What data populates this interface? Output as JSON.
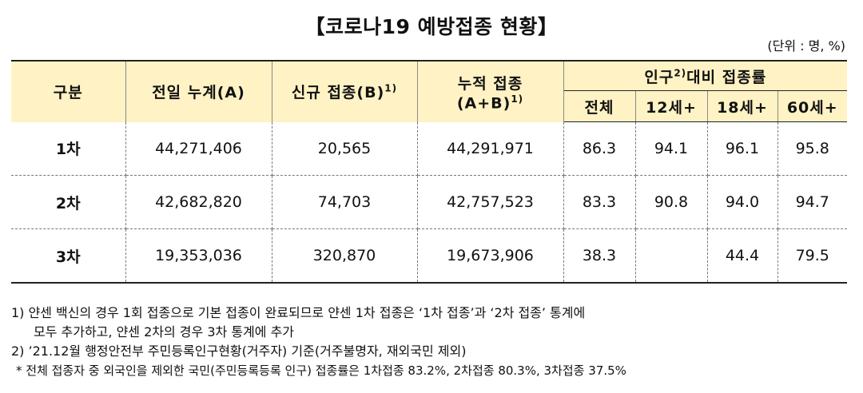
{
  "title": "【코로나19 예방접종 현황】",
  "unit": "(단위 : 명, %)",
  "table": {
    "headers": {
      "category": "구분",
      "prev_total": "전일 누계(A)",
      "new": "신규 접종(B)",
      "new_sup": "1)",
      "cumulative_line1": "누적 접종",
      "cumulative_line2": "(A+B)",
      "cumulative_sup": "1)",
      "ratio_group": "인구",
      "ratio_sup": "2)",
      "ratio_group_tail": "대비 접종률",
      "ratio_cols": [
        "전체",
        "12세+",
        "18세+",
        "60세+"
      ]
    },
    "rows": [
      {
        "label": "1차",
        "prev_total": "44,271,406",
        "new": "20,565",
        "cumulative": "44,291,971",
        "all": "86.3",
        "age12": "94.1",
        "age18": "96.1",
        "age60": "95.8"
      },
      {
        "label": "2차",
        "prev_total": "42,682,820",
        "new": "74,703",
        "cumulative": "42,757,523",
        "all": "83.3",
        "age12": "90.8",
        "age18": "94.0",
        "age60": "94.7"
      },
      {
        "label": "3차",
        "prev_total": "19,353,036",
        "new": "320,870",
        "cumulative": "19,673,906",
        "all": "38.3",
        "age12": "",
        "age18": "44.4",
        "age60": "79.5"
      }
    ]
  },
  "notes": {
    "n1_line1": "1) 얀센 백신의 경우 1회 접종으로 기본 접종이 완료되므로 얀센 1차 접종은 ‘1차 접종’과 ‘2차 접종’ 통계에",
    "n1_line2": "모두 추가하고, 얀센 2차의 경우 3차 통계에 추가",
    "n2": "2) ’21.12월 행정안전부 주민등록인구현황(거주자) 기준(거주불명자, 재외국민 제외)",
    "star": "* 전체 접종자 중 외국인을 제외한 국민(주민등록등록 인구) 접종률은 1차접종 83.2%, 2차접종 80.3%, 3차접종 37.5%"
  }
}
